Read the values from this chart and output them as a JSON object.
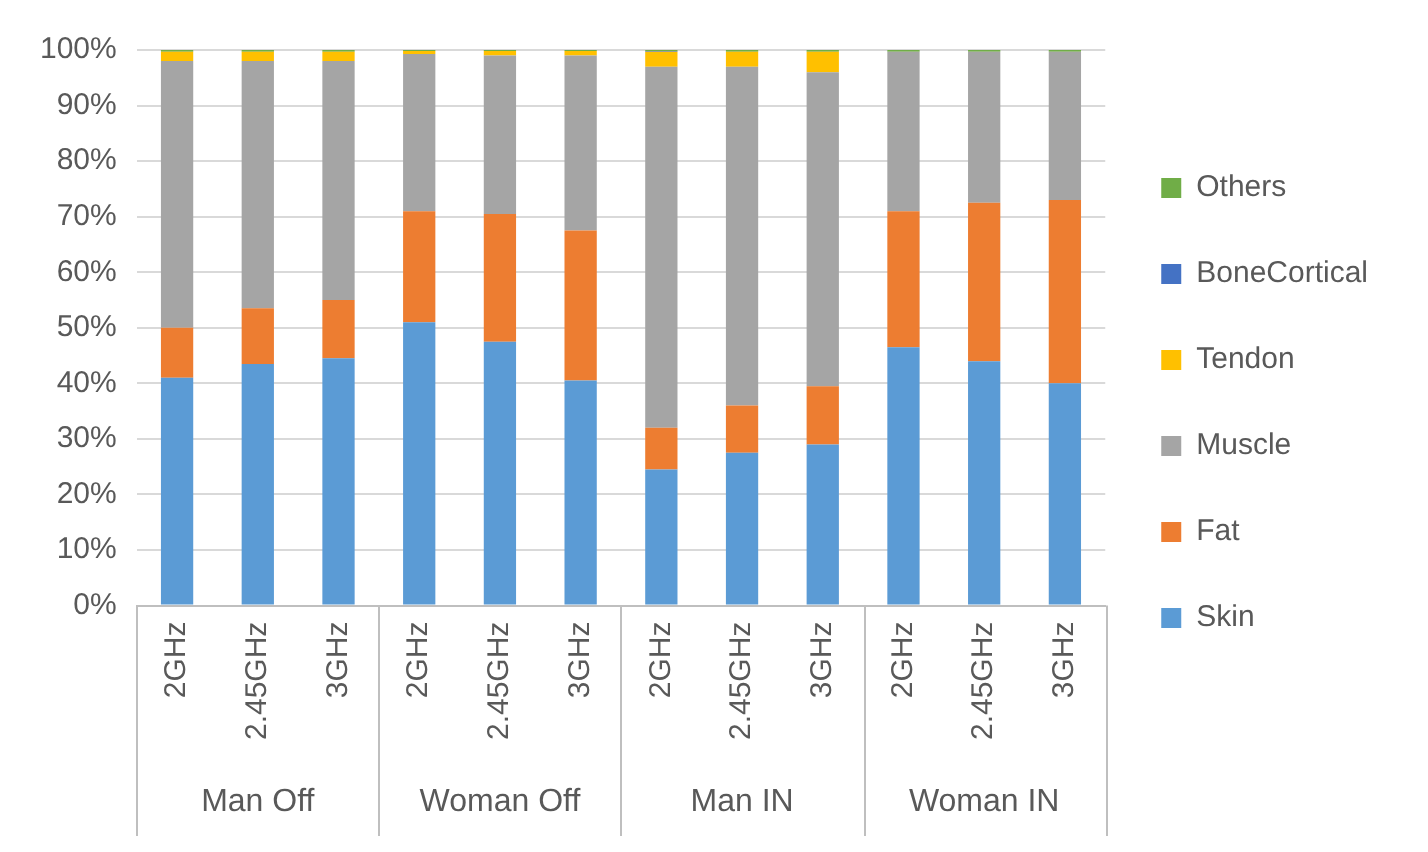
{
  "chart_data": {
    "type": "bar",
    "stacked": true,
    "categories": [
      "2GHz",
      "2.45GHz",
      "3GHz",
      "2GHz",
      "2.45GHz",
      "3GHz",
      "2GHz",
      "2.45GHz",
      "3GHz",
      "2GHz",
      "2.45GHz",
      "3GHz"
    ],
    "annotations": [
      "Man Off",
      "Woman Off",
      "Man IN",
      "Woman IN"
    ],
    "series": [
      {
        "name": "Skin",
        "color": "#5b9bd5",
        "values": [
          41,
          43.5,
          44.5,
          51,
          47.5,
          40.5,
          24.5,
          27.5,
          29,
          46.5,
          44,
          40
        ]
      },
      {
        "name": "Fat",
        "color": "#ed7d31",
        "values": [
          9,
          10,
          10.5,
          20,
          23,
          27,
          7.5,
          8.5,
          10.5,
          24.5,
          28.5,
          33
        ]
      },
      {
        "name": "Muscle",
        "color": "#a5a5a5",
        "values": [
          48,
          44.5,
          43,
          28.3,
          28.5,
          31.5,
          65,
          61,
          56.5,
          28.7,
          27.2,
          26.7
        ]
      },
      {
        "name": "Tendon",
        "color": "#ffc000",
        "values": [
          1.7,
          1.7,
          1.7,
          0.5,
          0.8,
          0.8,
          2.7,
          2.7,
          3.7,
          0,
          0,
          0
        ]
      },
      {
        "name": "BoneCortical",
        "color": "#4472c4",
        "values": [
          0,
          0,
          0,
          0,
          0,
          0,
          0.1,
          0,
          0,
          0,
          0,
          0
        ]
      },
      {
        "name": "Others",
        "color": "#70ad47",
        "values": [
          0.3,
          0.3,
          0.3,
          0.2,
          0.2,
          0.2,
          0.2,
          0.3,
          0.3,
          0.3,
          0.3,
          0.3
        ]
      }
    ],
    "ylim": [
      0,
      100
    ],
    "yticks": [
      {
        "value": 0,
        "label": "0%"
      },
      {
        "value": 10,
        "label": "10%"
      },
      {
        "value": 20,
        "label": "20%"
      },
      {
        "value": 30,
        "label": "30%"
      },
      {
        "value": 40,
        "label": "40%"
      },
      {
        "value": 50,
        "label": "50%"
      },
      {
        "value": 60,
        "label": "60%"
      },
      {
        "value": 70,
        "label": "70%"
      },
      {
        "value": 80,
        "label": "80%"
      },
      {
        "value": 90,
        "label": "90%"
      },
      {
        "value": 100,
        "label": "100%"
      }
    ],
    "grid": "y",
    "legend": "right"
  }
}
